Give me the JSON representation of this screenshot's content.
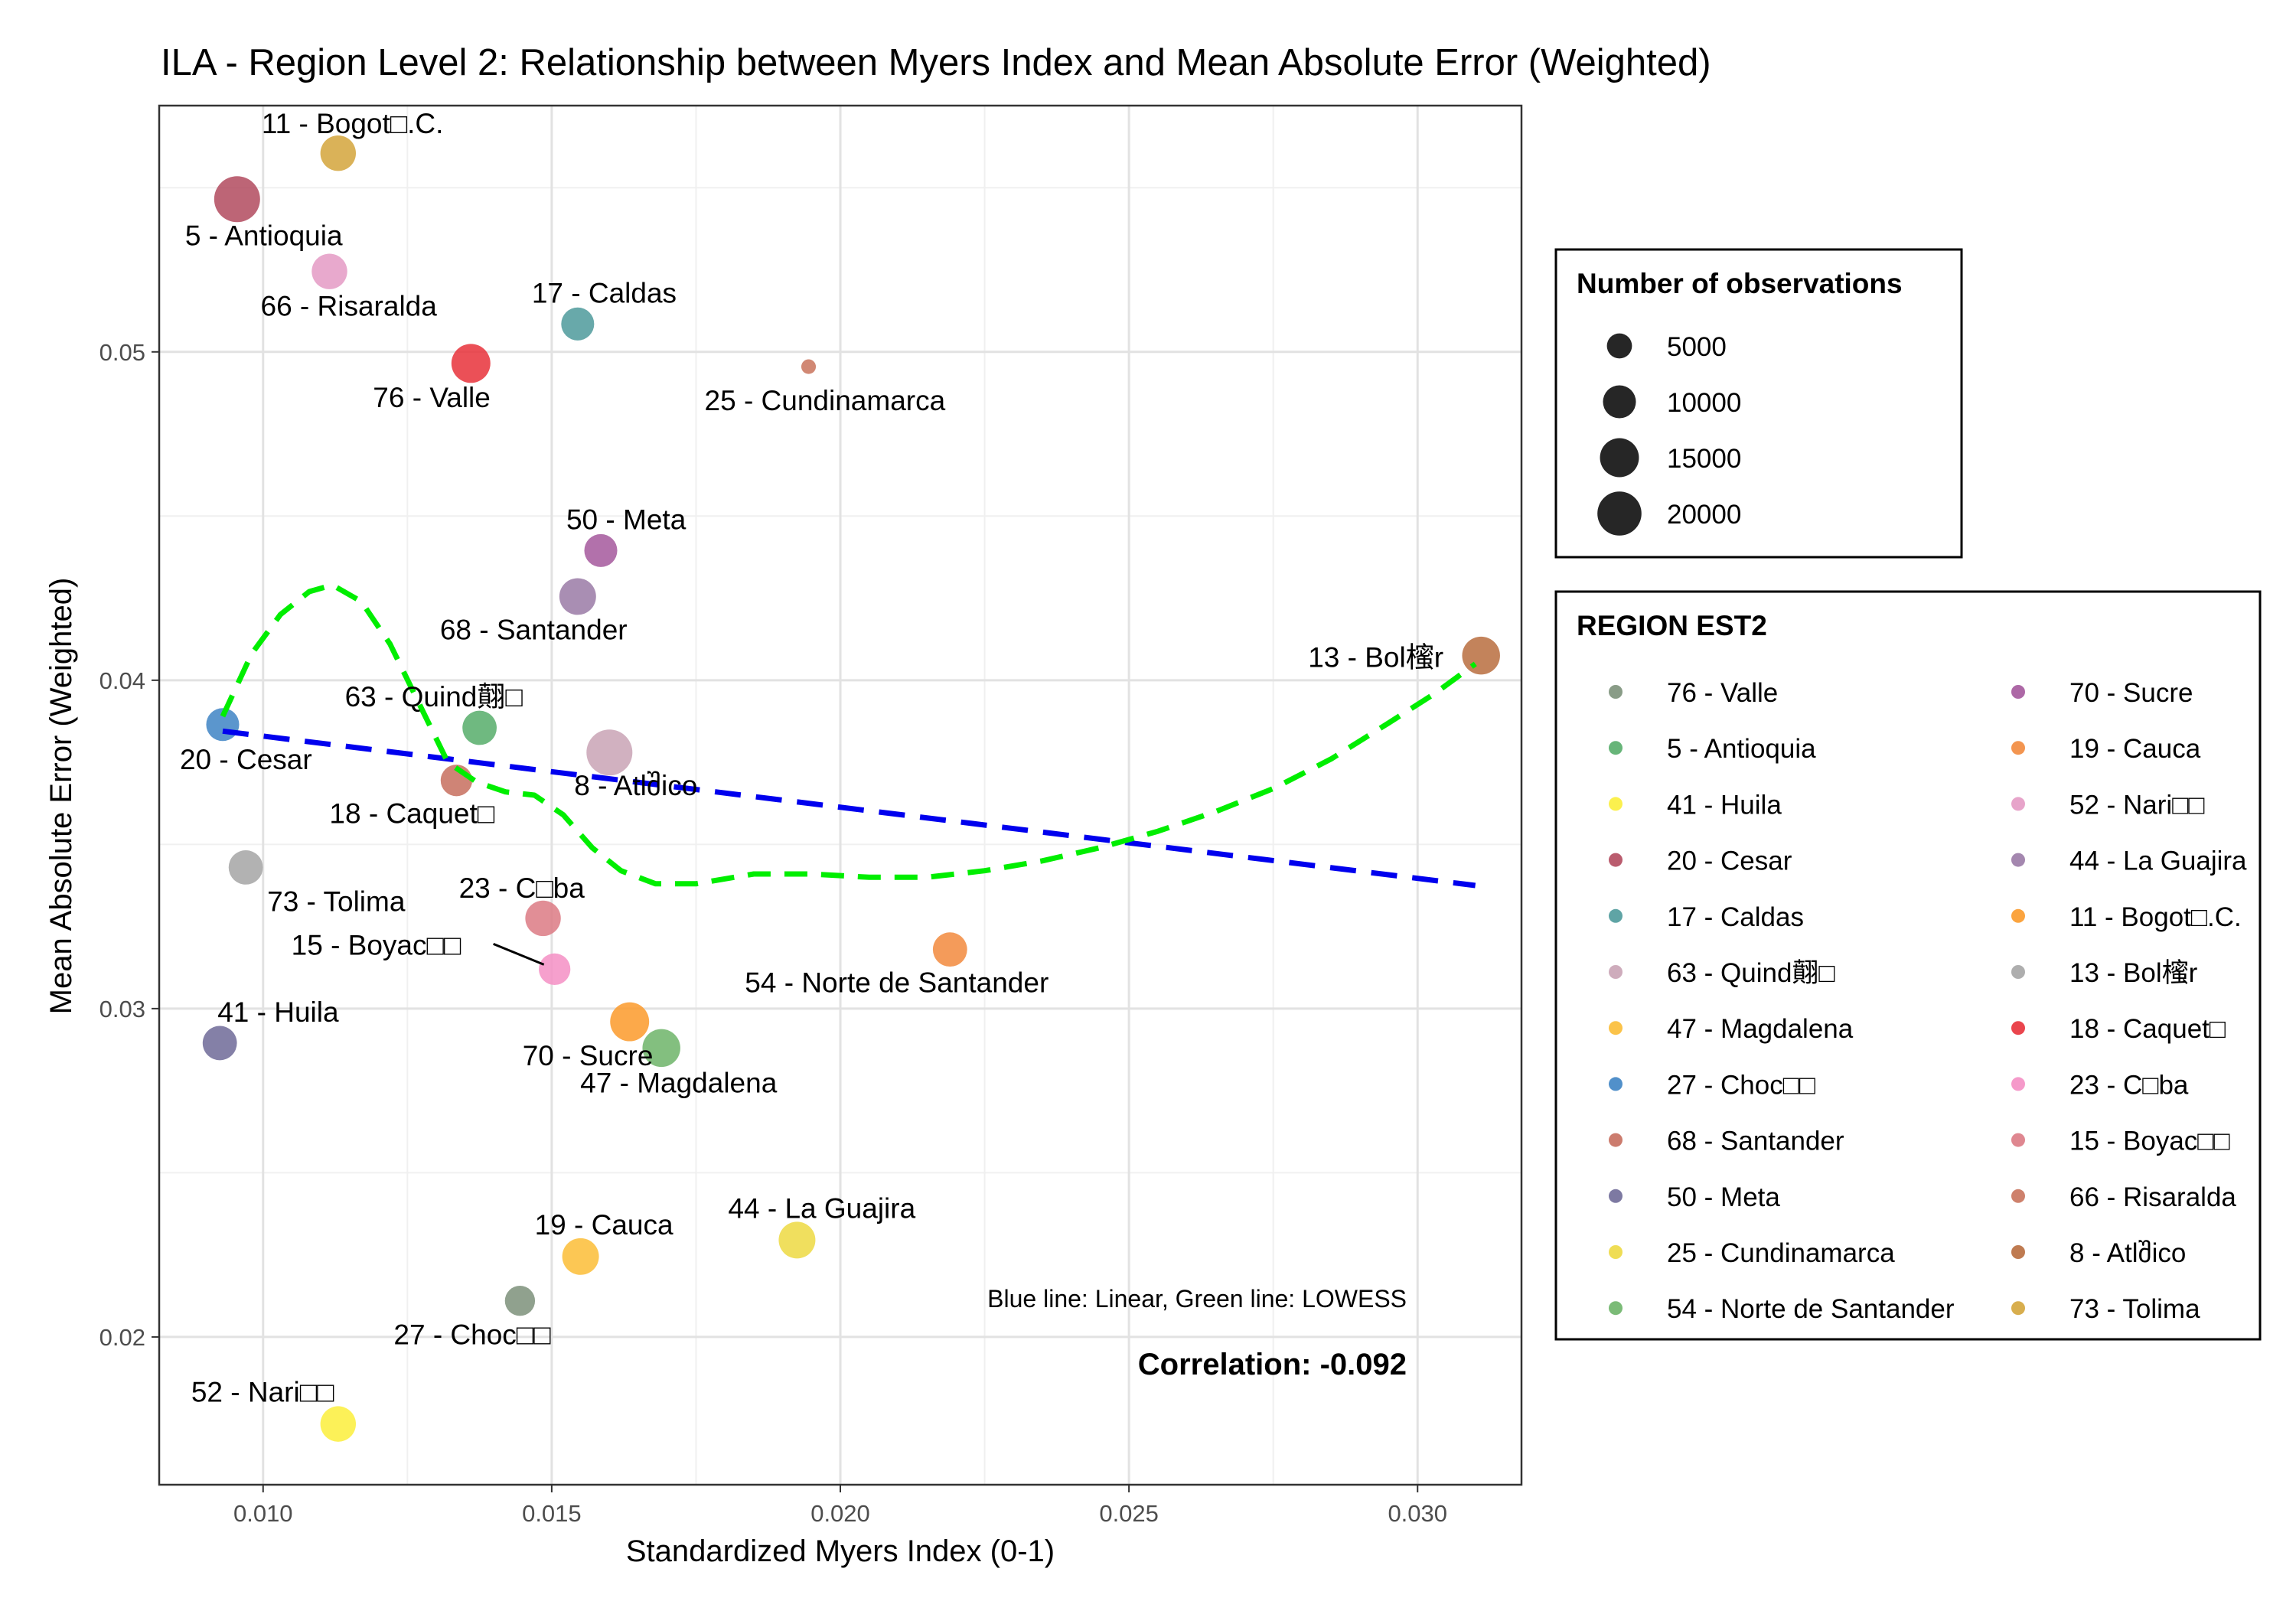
{
  "chart_data": {
    "type": "scatter",
    "title": "ILA - Region Level 2: Relationship between Myers Index and Mean Absolute Error (Weighted)",
    "xlabel": "Standardized Myers Index (0-1)",
    "ylabel": "Mean Absolute Error (Weighted)",
    "xlim": [
      0.0082,
      0.0318
    ],
    "ylim": [
      0.0155,
      0.0575
    ],
    "x_ticks": [
      0.01,
      0.015,
      0.02,
      0.025,
      0.03
    ],
    "x_tick_labels": [
      "0.010",
      "0.015",
      "0.020",
      "0.025",
      "0.030"
    ],
    "y_ticks": [
      0.02,
      0.03,
      0.04,
      0.05
    ],
    "y_tick_labels": [
      "0.02",
      "0.03",
      "0.04",
      "0.05"
    ],
    "grid": true,
    "points": [
      {
        "label": "11 - Bogot□.C.",
        "x": 0.0113,
        "y": 0.05605,
        "n": 12000,
        "color": "#d4a53b"
      },
      {
        "label": "5 - Antioquia",
        "x": 0.00955,
        "y": 0.05465,
        "n": 22000,
        "color": "#b24a5e"
      },
      {
        "label": "66 - Risaralda",
        "x": 0.01115,
        "y": 0.05245,
        "n": 12000,
        "color": "#e49ac4"
      },
      {
        "label": "17 - Caldas",
        "x": 0.01545,
        "y": 0.05085,
        "n": 10000,
        "color": "#4e9a9b"
      },
      {
        "label": "76 - Valle",
        "x": 0.0136,
        "y": 0.04965,
        "n": 15000,
        "color": "#e8313a"
      },
      {
        "label": "25 - Cundinamarca",
        "x": 0.01945,
        "y": 0.04955,
        "n": 1000,
        "color": "#c9735c"
      },
      {
        "label": "50 - Meta",
        "x": 0.01585,
        "y": 0.04395,
        "n": 10000,
        "color": "#a4589c"
      },
      {
        "label": "68 - Santander",
        "x": 0.01545,
        "y": 0.04255,
        "n": 13000,
        "color": "#9a7aa6"
      },
      {
        "label": "13 - Bol櫁r",
        "x": 0.0311,
        "y": 0.04075,
        "n": 14000,
        "color": "#b86d3e"
      },
      {
        "label": "20 - Cesar",
        "x": 0.0093,
        "y": 0.03865,
        "n": 10000,
        "color": "#3e84c4"
      },
      {
        "label": "63 - Quind翸□",
        "x": 0.01375,
        "y": 0.03855,
        "n": 11000,
        "color": "#56ad6a"
      },
      {
        "label": "8 - Atlშico",
        "x": 0.016,
        "y": 0.0378,
        "n": 22000,
        "color": "#c9a3b5"
      },
      {
        "label": "18 - Caquet□",
        "x": 0.01335,
        "y": 0.03695,
        "n": 9000,
        "color": "#c76e5e"
      },
      {
        "label": "73 - Tolima",
        "x": 0.0097,
        "y": 0.0343,
        "n": 11000,
        "color": "#a5a5a5"
      },
      {
        "label": "23 - C□ba",
        "x": 0.01485,
        "y": 0.03275,
        "n": 12000,
        "color": "#dc7a84"
      },
      {
        "label": "15 - Boyac□□",
        "x": 0.01505,
        "y": 0.0312,
        "n": 9000,
        "color": "#f48fc4"
      },
      {
        "label": "54 - Norte de Santander",
        "x": 0.0219,
        "y": 0.0318,
        "n": 11000,
        "color": "#f2893d"
      },
      {
        "label": "70 - Sucre",
        "x": 0.01635,
        "y": 0.0296,
        "n": 15000,
        "color": "#fb9a2a"
      },
      {
        "label": "47 - Magdalena",
        "x": 0.0169,
        "y": 0.0288,
        "n": 14000,
        "color": "#6db468"
      },
      {
        "label": "41 - Huila",
        "x": 0.00925,
        "y": 0.02895,
        "n": 11000,
        "color": "#6f6a98"
      },
      {
        "label": "44 - La Guajira",
        "x": 0.01925,
        "y": 0.02295,
        "n": 13000,
        "color": "#edd942"
      },
      {
        "label": "19 - Cauca",
        "x": 0.0155,
        "y": 0.02245,
        "n": 13000,
        "color": "#fbbd36"
      },
      {
        "label": "27 - Choc□□",
        "x": 0.01445,
        "y": 0.0211,
        "n": 8000,
        "color": "#7c917a"
      },
      {
        "label": "52 - Nari□□",
        "x": 0.0113,
        "y": 0.01735,
        "n": 12000,
        "color": "#fbee3b"
      }
    ],
    "linear_fit": [
      [
        0.0093,
        0.03845
      ],
      [
        0.031,
        0.03375
      ]
    ],
    "lowess_fit": [
      [
        0.0093,
        0.0389
      ],
      [
        0.0098,
        0.0408
      ],
      [
        0.0103,
        0.042
      ],
      [
        0.0108,
        0.0427
      ],
      [
        0.0112,
        0.0429
      ],
      [
        0.0117,
        0.0424
      ],
      [
        0.0122,
        0.0411
      ],
      [
        0.0127,
        0.0393
      ],
      [
        0.0132,
        0.0375
      ],
      [
        0.0137,
        0.0369
      ],
      [
        0.0142,
        0.0366
      ],
      [
        0.0147,
        0.0365
      ],
      [
        0.0152,
        0.0359
      ],
      [
        0.0157,
        0.0349
      ],
      [
        0.0162,
        0.0342
      ],
      [
        0.0168,
        0.0338
      ],
      [
        0.0175,
        0.0338
      ],
      [
        0.0185,
        0.0341
      ],
      [
        0.0195,
        0.0341
      ],
      [
        0.0205,
        0.034
      ],
      [
        0.0215,
        0.034
      ],
      [
        0.0225,
        0.0342
      ],
      [
        0.0235,
        0.0345
      ],
      [
        0.0245,
        0.0349
      ],
      [
        0.0255,
        0.0354
      ],
      [
        0.0265,
        0.036
      ],
      [
        0.0275,
        0.0367
      ],
      [
        0.0285,
        0.0376
      ],
      [
        0.0295,
        0.0387
      ],
      [
        0.0303,
        0.0396
      ],
      [
        0.031,
        0.0405
      ]
    ],
    "annotations": {
      "lines_note": "Blue line: Linear, Green line: LOWESS",
      "correlation": "Correlation: -0.092"
    },
    "size_legend": {
      "title": "Number of observations",
      "entries": [
        {
          "label": "5000",
          "n": 5000
        },
        {
          "label": "10000",
          "n": 10000
        },
        {
          "label": "15000",
          "n": 15000
        },
        {
          "label": "20000",
          "n": 20000
        }
      ]
    },
    "color_legend": {
      "title": "REGION EST2",
      "placement": "right",
      "entries": [
        {
          "label": "76 - Valle",
          "color": "#7c917a"
        },
        {
          "label": " 5 - Antioquia",
          "color": "#56ad6a"
        },
        {
          "label": "41 - Huila",
          "color": "#fbee3b"
        },
        {
          "label": "20 - Cesar",
          "color": "#b24a5e"
        },
        {
          "label": "17 - Caldas",
          "color": "#4e9a9b"
        },
        {
          "label": "63 - Quind翸□",
          "color": "#c9a3b5"
        },
        {
          "label": "47 - Magdalena",
          "color": "#fbbd36"
        },
        {
          "label": "27 - Choc□□",
          "color": "#3e84c4"
        },
        {
          "label": "68 - Santander",
          "color": "#c76e5e"
        },
        {
          "label": "50 - Meta",
          "color": "#6f6a98"
        },
        {
          "label": "25 - Cundinamarca",
          "color": "#edd942"
        },
        {
          "label": "54 - Norte de Santander",
          "color": "#6db468"
        },
        {
          "label": "70 - Sucre",
          "color": "#a4589c"
        },
        {
          "label": "19 - Cauca",
          "color": "#f2893d"
        },
        {
          "label": "52 - Nari□□",
          "color": "#e49ac4"
        },
        {
          "label": "44 - La Guajira",
          "color": "#9a7aa6"
        },
        {
          "label": "11 - Bogot□.C.",
          "color": "#fb9a2a"
        },
        {
          "label": "13 - Bol櫁r",
          "color": "#a5a5a5"
        },
        {
          "label": "18 - Caquet□",
          "color": "#e8313a"
        },
        {
          "label": "23 - C□ba",
          "color": "#f48fc4"
        },
        {
          "label": "15 - Boyac□□",
          "color": "#dc7a84"
        },
        {
          "label": "66 - Risaralda",
          "color": "#c9735c"
        },
        {
          "label": " 8 - Atlშico",
          "color": "#b86d3e"
        },
        {
          "label": "73 - Tolima",
          "color": "#d4a53b"
        }
      ]
    },
    "linear_color": "#0000ee",
    "lowess_color": "#00ee00"
  }
}
